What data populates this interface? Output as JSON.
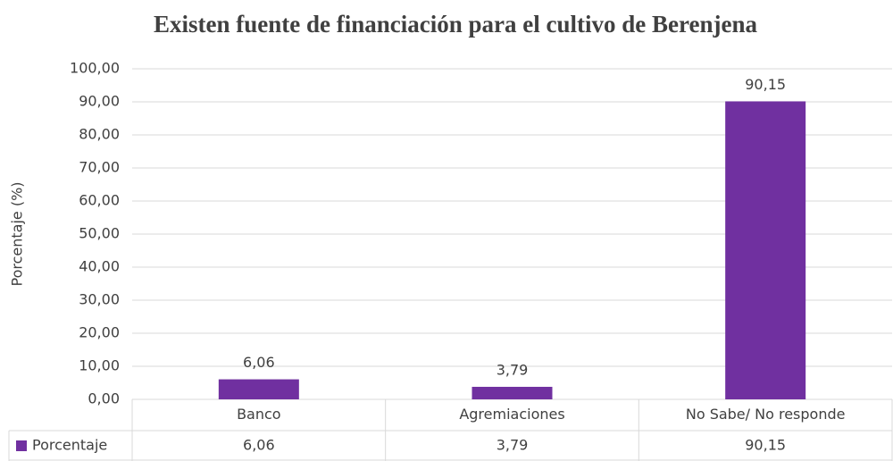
{
  "chart_data": {
    "type": "bar",
    "title": "Existen fuente de financiación para el cultivo de Berenjena",
    "y_label": "Porcentaje (%)",
    "categories": [
      "Banco",
      "Agremiaciones",
      "No Sabe/ No responde"
    ],
    "series": [
      {
        "name": "Porcentaje",
        "color": "#7030a0",
        "values": [
          6.06,
          3.79,
          90.15
        ],
        "value_labels": [
          "6,06",
          "3,79",
          "90,15"
        ]
      }
    ],
    "ylim": [
      0,
      100
    ],
    "yticks": [
      {
        "value": 0,
        "label": "0,00"
      },
      {
        "value": 10,
        "label": "10,00"
      },
      {
        "value": 20,
        "label": "20,00"
      },
      {
        "value": 30,
        "label": "30,00"
      },
      {
        "value": 40,
        "label": "40,00"
      },
      {
        "value": 50,
        "label": "50,00"
      },
      {
        "value": 60,
        "label": "60,00"
      },
      {
        "value": 70,
        "label": "70,00"
      },
      {
        "value": 80,
        "label": "80,00"
      },
      {
        "value": 90,
        "label": "90,00"
      },
      {
        "value": 100,
        "label": "100,00"
      }
    ],
    "grid": true,
    "data_table": true
  }
}
